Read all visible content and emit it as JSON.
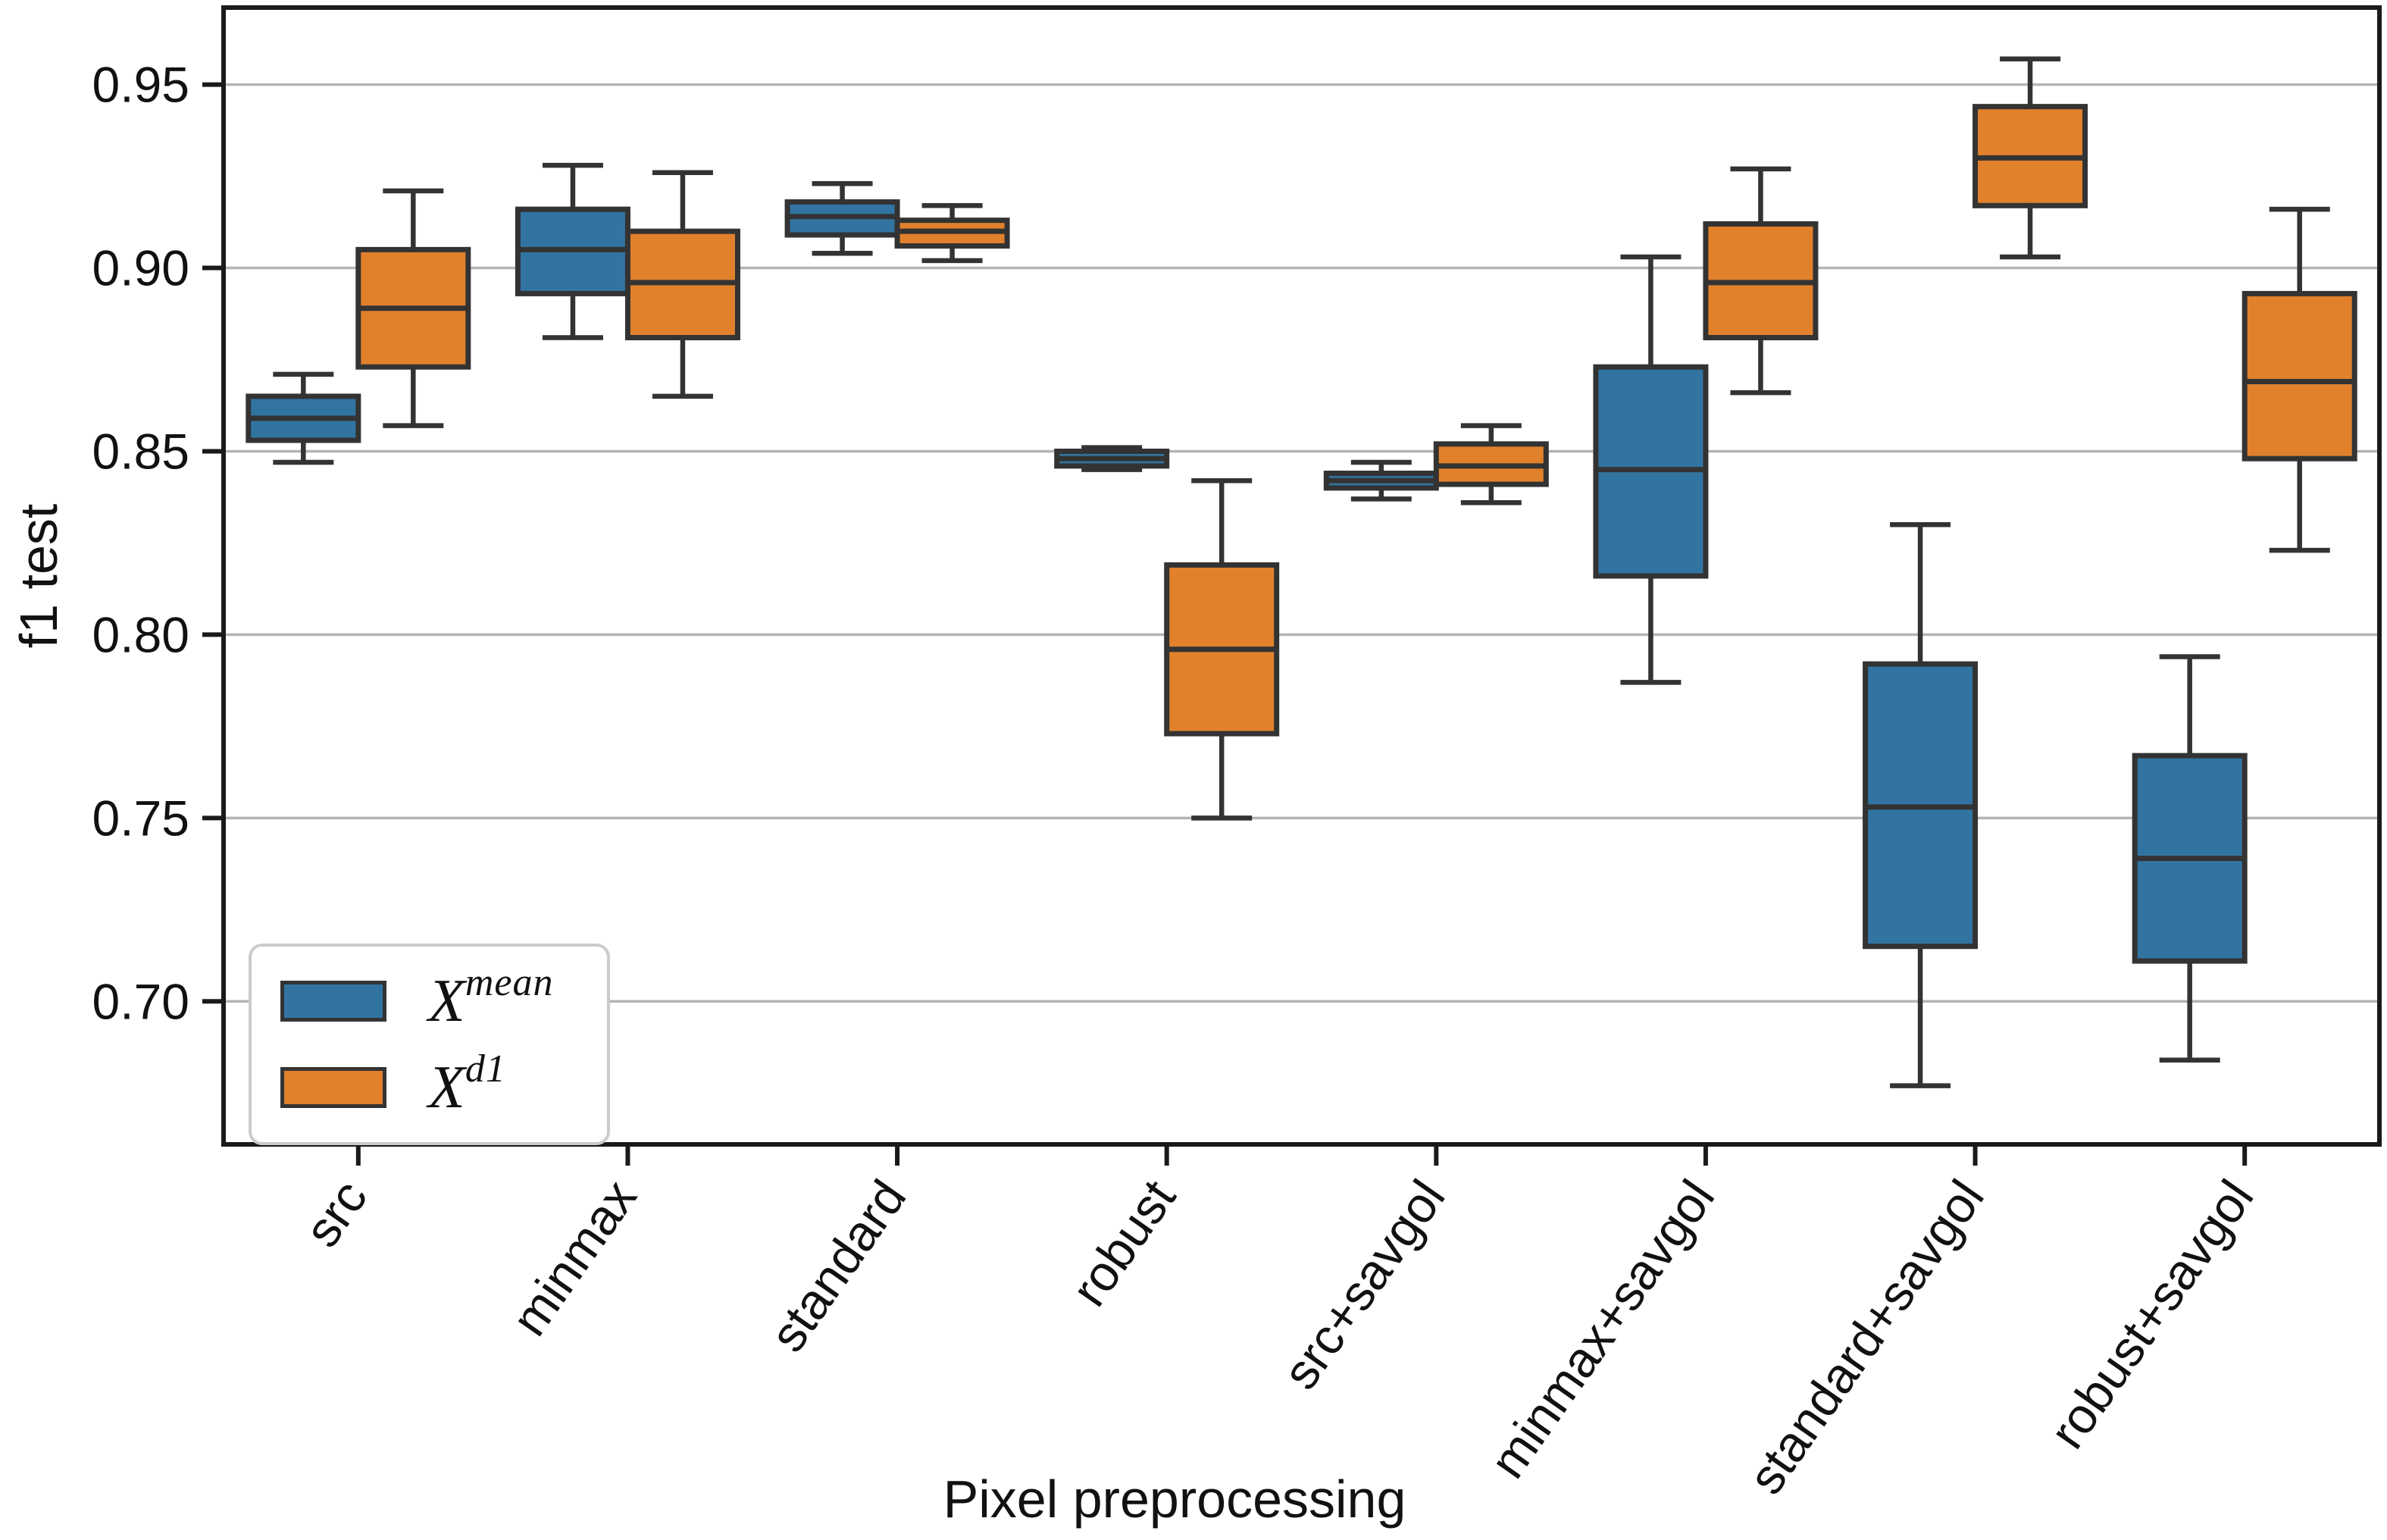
{
  "chart_data": {
    "type": "boxplot",
    "title": "",
    "xlabel": "Pixel preprocessing",
    "ylabel": "f1 test",
    "categories": [
      "src",
      "minmax",
      "standard",
      "robust",
      "src+savgol",
      "minmax+savgol",
      "standard+savgol",
      "robust+savgol"
    ],
    "y_ticks": [
      0.7,
      0.75,
      0.8,
      0.85,
      0.9,
      0.95
    ],
    "ylim": [
      0.661,
      0.971
    ],
    "grid": "horizontal",
    "legend_position": "lower-left",
    "series": [
      {
        "name": "X^mean",
        "label_base": "X",
        "label_sup": "mean",
        "color": "#3274A1",
        "boxes": [
          {
            "whislo": 0.847,
            "q1": 0.853,
            "med": 0.859,
            "q3": 0.865,
            "whishi": 0.871
          },
          {
            "whislo": 0.881,
            "q1": 0.893,
            "med": 0.905,
            "q3": 0.916,
            "whishi": 0.928
          },
          {
            "whislo": 0.904,
            "q1": 0.909,
            "med": 0.914,
            "q3": 0.918,
            "whishi": 0.923
          },
          {
            "whislo": 0.845,
            "q1": 0.846,
            "med": 0.848,
            "q3": 0.85,
            "whishi": 0.851
          },
          {
            "whislo": 0.837,
            "q1": 0.84,
            "med": 0.842,
            "q3": 0.844,
            "whishi": 0.847
          },
          {
            "whislo": 0.787,
            "q1": 0.816,
            "med": 0.845,
            "q3": 0.873,
            "whishi": 0.903
          },
          {
            "whislo": 0.677,
            "q1": 0.715,
            "med": 0.753,
            "q3": 0.792,
            "whishi": 0.83
          },
          {
            "whislo": 0.684,
            "q1": 0.711,
            "med": 0.739,
            "q3": 0.767,
            "whishi": 0.794
          }
        ]
      },
      {
        "name": "X^d1",
        "label_base": "X",
        "label_sup": "d1",
        "color": "#E1812C",
        "boxes": [
          {
            "whislo": 0.857,
            "q1": 0.873,
            "med": 0.889,
            "q3": 0.905,
            "whishi": 0.921
          },
          {
            "whislo": 0.865,
            "q1": 0.881,
            "med": 0.896,
            "q3": 0.91,
            "whishi": 0.926
          },
          {
            "whislo": 0.902,
            "q1": 0.906,
            "med": 0.91,
            "q3": 0.913,
            "whishi": 0.917
          },
          {
            "whislo": 0.75,
            "q1": 0.773,
            "med": 0.796,
            "q3": 0.819,
            "whishi": 0.842
          },
          {
            "whislo": 0.836,
            "q1": 0.841,
            "med": 0.846,
            "q3": 0.852,
            "whishi": 0.857
          },
          {
            "whislo": 0.866,
            "q1": 0.881,
            "med": 0.896,
            "q3": 0.912,
            "whishi": 0.927
          },
          {
            "whislo": 0.903,
            "q1": 0.917,
            "med": 0.93,
            "q3": 0.944,
            "whishi": 0.957
          },
          {
            "whislo": 0.823,
            "q1": 0.848,
            "med": 0.869,
            "q3": 0.893,
            "whishi": 0.916
          }
        ]
      }
    ],
    "style": {
      "box_edge_color": "#333333",
      "grid_color": "#b4b4b4",
      "spine_color": "#1a1a1a",
      "background": "#ffffff"
    }
  }
}
